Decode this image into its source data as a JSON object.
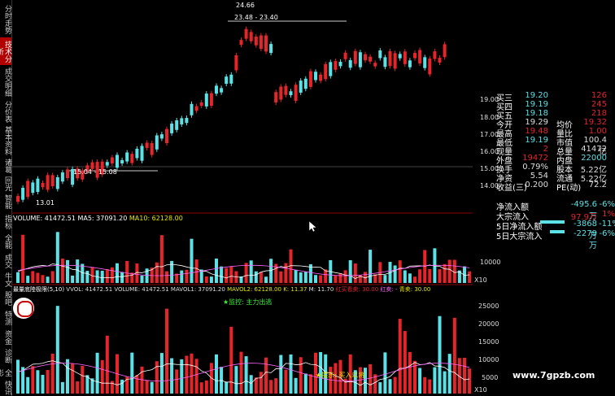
{
  "left_tabs": [
    "分时走势",
    "技术分析",
    "成交明细",
    "分价表",
    "基本资料",
    "诸葛",
    "回光",
    "智能"
  ],
  "active_tab_index": 1,
  "price_chart": {
    "annotations": {
      "high": "24.66",
      "range1": "23.48 - 23.40",
      "range2": "15.04 - 15.08",
      "low": "13.01"
    },
    "right_axis": [
      "19.00",
      "18.00",
      "17.00",
      "16.00",
      "15.00",
      "14.00"
    ]
  },
  "quote": {
    "rows": [
      {
        "l1": "买三",
        "v1": "19.20",
        "l2": "",
        "v2": "126",
        "c1": "#5ce1e6",
        "c2": "#e5252a"
      },
      {
        "l1": "买四",
        "v1": "19.19",
        "l2": "",
        "v2": "245",
        "c1": "#5ce1e6",
        "c2": "#e5252a"
      },
      {
        "l1": "买五",
        "v1": "19.18",
        "l2": "",
        "v2": "218",
        "c1": "#5ce1e6",
        "c2": "#e5252a"
      },
      {
        "l1": "今开",
        "v1": "19.29",
        "l2": "均价",
        "v2": "19.32",
        "c1": "#ddd",
        "c2": "#e5252a"
      },
      {
        "l1": "最高",
        "v1": "19.48",
        "l2": "量比",
        "v2": "1.00",
        "c1": "#e5252a",
        "c2": "#e5252a"
      },
      {
        "l1": "最低",
        "v1": "19.19",
        "l2": "市值",
        "v2": "100.4亿",
        "c1": "#5ce1e6",
        "c2": "#ddd"
      },
      {
        "l1": "现量",
        "v1": "2",
        "l2": "总量",
        "v2": "41472",
        "c1": "#e5252a",
        "c2": "#ddd"
      },
      {
        "l1": "外盘",
        "v1": "19472",
        "l2": "内盘",
        "v2": "22000",
        "c1": "#e5252a",
        "c2": "#5ce1e6"
      },
      {
        "l1": "换手",
        "v1": "0.79%",
        "l2": "股本",
        "v2": "5.22亿",
        "c1": "#ddd",
        "c2": "#ddd"
      },
      {
        "l1": "净资",
        "v1": "5.54",
        "l2": "流通",
        "v2": "5.22亿",
        "c1": "#ddd",
        "c2": "#ddd"
      },
      {
        "l1": "收益(三)",
        "v1": "0.200",
        "l2": "PE(动)",
        "v2": "72.2",
        "c1": "#ddd",
        "c2": "#ddd"
      }
    ]
  },
  "flows": [
    {
      "label": "净流入额",
      "value": "-495.6万",
      "pct": "-6%",
      "color": "#5ce1e6"
    },
    {
      "label": "大宗流入",
      "value": "97.9万",
      "pct": "1%",
      "color": "#e5252a"
    },
    {
      "label": "5日净流入额",
      "value": "-3868万",
      "pct": "-11%",
      "color": "#5ce1e6"
    },
    {
      "label": "5日大宗流入",
      "value": "-2279万",
      "pct": "-6%",
      "color": "#5ce1e6"
    }
  ],
  "volume_panel": {
    "legend": [
      "VOLUME: 41472.51",
      "MA5: 37091.20",
      "MA10: 62128.00"
    ],
    "axis": [
      "10000",
      "X10"
    ],
    "side_tabs": [
      "指标",
      "全能",
      "成交",
      "牛文"
    ]
  },
  "indicator_panel": {
    "legend": [
      "最量底陸极限(5,10)",
      "VVOL: 41472.51",
      "VOLUME: 41472.51",
      "MAVOL1: 37091.20",
      "MAVOL2: 62128.00",
      "K: 11.37",
      "M: 11.70",
      "红买看卖: 30.00",
      "红卖: -",
      "青卖: 30.00"
    ],
    "label_top": "★监控: 主力出逃",
    "label_bottom": "★提示: 买入以将",
    "axis": [
      "25000",
      "20000",
      "15000",
      "10000",
      "5000",
      "X10"
    ],
    "side_tabs": [
      "股吧",
      "特测",
      "资金",
      "诊断",
      "全影",
      "快讯"
    ]
  },
  "watermark": "www.7gpzb.com",
  "colors": {
    "up": "#e5252a",
    "down": "#5ce1e6",
    "ma1": "#ffffff",
    "ma2": "#e5e500",
    "ma3": "#ff66ff"
  }
}
